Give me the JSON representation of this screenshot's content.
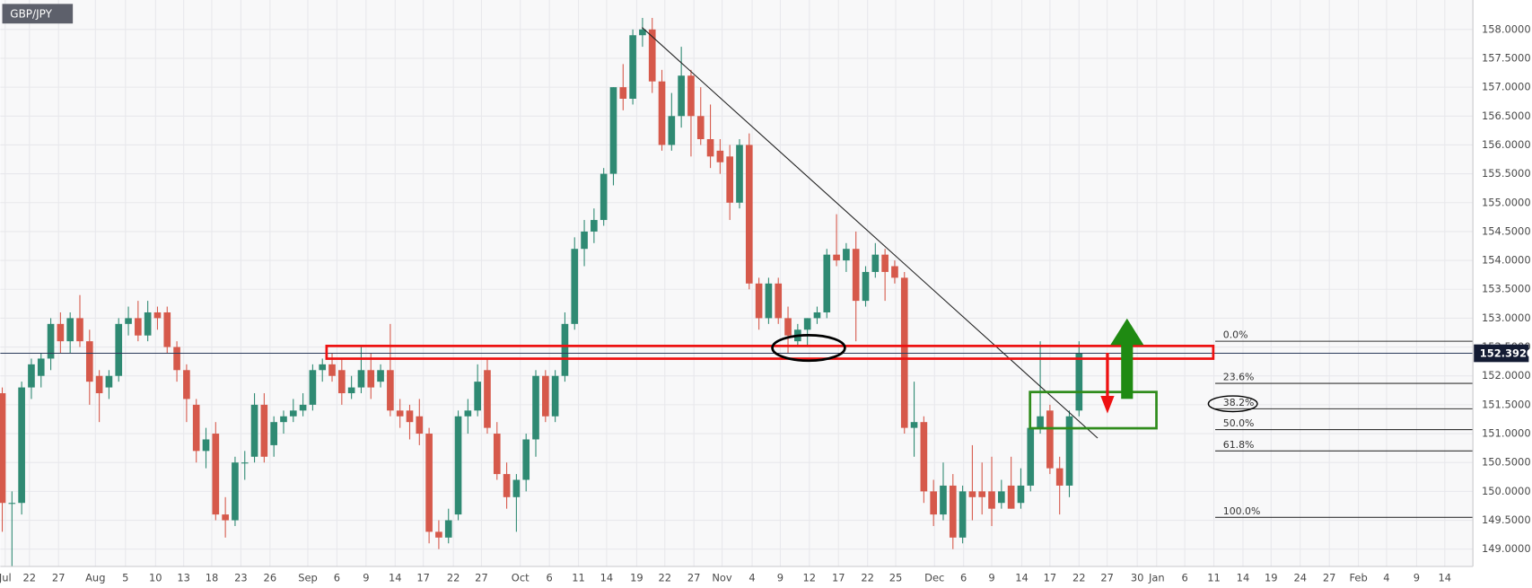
{
  "chart_data": {
    "type": "candlestick",
    "title": "GBP/JPY",
    "up_color": "#2f8a73",
    "down_color": "#d6594b",
    "xlim": [
      -0.2,
      151.6
    ],
    "ylim": [
      148.7,
      158.51
    ],
    "grid": true,
    "xticks": [
      {
        "value": 0.3,
        "label": "Jul"
      },
      {
        "value": 2.8,
        "label": "22"
      },
      {
        "value": 5.8,
        "label": "27"
      },
      {
        "value": 9.6,
        "label": "Aug"
      },
      {
        "value": 12.7,
        "label": "5"
      },
      {
        "value": 15.8,
        "label": "10"
      },
      {
        "value": 18.7,
        "label": "13"
      },
      {
        "value": 21.6,
        "label": "18"
      },
      {
        "value": 24.6,
        "label": "23"
      },
      {
        "value": 27.6,
        "label": "26"
      },
      {
        "value": 31.5,
        "label": "Sep"
      },
      {
        "value": 34.5,
        "label": "6"
      },
      {
        "value": 37.5,
        "label": "9"
      },
      {
        "value": 40.5,
        "label": "14"
      },
      {
        "value": 43.4,
        "label": "17"
      },
      {
        "value": 46.5,
        "label": "22"
      },
      {
        "value": 49.4,
        "label": "27"
      },
      {
        "value": 53.4,
        "label": "Oct"
      },
      {
        "value": 56.4,
        "label": "6"
      },
      {
        "value": 59.4,
        "label": "11"
      },
      {
        "value": 62.3,
        "label": "14"
      },
      {
        "value": 65.4,
        "label": "19"
      },
      {
        "value": 68.3,
        "label": "22"
      },
      {
        "value": 71.3,
        "label": "27"
      },
      {
        "value": 74.2,
        "label": "Nov"
      },
      {
        "value": 77.3,
        "label": "4"
      },
      {
        "value": 80.2,
        "label": "9"
      },
      {
        "value": 83.2,
        "label": "12"
      },
      {
        "value": 86.2,
        "label": "17"
      },
      {
        "value": 89.2,
        "label": "22"
      },
      {
        "value": 92.1,
        "label": "25"
      },
      {
        "value": 96.1,
        "label": "Dec"
      },
      {
        "value": 99.1,
        "label": "6"
      },
      {
        "value": 102,
        "label": "9"
      },
      {
        "value": 105.1,
        "label": "14"
      },
      {
        "value": 108,
        "label": "17"
      },
      {
        "value": 111,
        "label": "22"
      },
      {
        "value": 113.9,
        "label": "27"
      },
      {
        "value": 117,
        "label": "30"
      },
      {
        "value": 119,
        "label": "Jan"
      },
      {
        "value": 121.9,
        "label": "6"
      },
      {
        "value": 124.9,
        "label": "11"
      },
      {
        "value": 127.9,
        "label": "14"
      },
      {
        "value": 130.8,
        "label": "19"
      },
      {
        "value": 133.8,
        "label": "24"
      },
      {
        "value": 136.8,
        "label": "27"
      },
      {
        "value": 139.8,
        "label": "Feb"
      },
      {
        "value": 142.7,
        "label": "4"
      },
      {
        "value": 145.8,
        "label": "9"
      },
      {
        "value": 148.7,
        "label": "14"
      }
    ],
    "yticks": [
      {
        "value": 149,
        "label": "149.0000"
      },
      {
        "value": 149.5,
        "label": "149.5000"
      },
      {
        "value": 150,
        "label": "150.0000"
      },
      {
        "value": 150.5,
        "label": "150.5000"
      },
      {
        "value": 151,
        "label": "151.0000"
      },
      {
        "value": 151.5,
        "label": "151.5000"
      },
      {
        "value": 152,
        "label": "152.0000"
      },
      {
        "value": 152.5,
        "label": "152.5000"
      },
      {
        "value": 153,
        "label": "153.0000"
      },
      {
        "value": 153.5,
        "label": "153.5000"
      },
      {
        "value": 154,
        "label": "154.0000"
      },
      {
        "value": 154.5,
        "label": "154.5000"
      },
      {
        "value": 155,
        "label": "155.0000"
      },
      {
        "value": 155.5,
        "label": "155.5000"
      },
      {
        "value": 156,
        "label": "156.0000"
      },
      {
        "value": 156.5,
        "label": "156.5000"
      },
      {
        "value": 157,
        "label": "157.0000"
      },
      {
        "value": 157.5,
        "label": "157.5000"
      },
      {
        "value": 158,
        "label": "158.0000"
      }
    ],
    "current_price": {
      "value": 152.392,
      "label": "152.3920"
    },
    "fib_levels": [
      {
        "value": 152.6,
        "label": "0.0%"
      },
      {
        "value": 151.87,
        "label": "23.6%"
      },
      {
        "value": 151.43,
        "label": "38.2%"
      },
      {
        "value": 151.07,
        "label": "50.0%"
      },
      {
        "value": 150.7,
        "label": "61.8%"
      },
      {
        "value": 149.55,
        "label": "100.0%"
      }
    ],
    "candles": [
      [
        151.7,
        151.8,
        149.3,
        149.8
      ],
      [
        149.8,
        150.0,
        148.7,
        149.8
      ],
      [
        149.8,
        151.9,
        149.6,
        151.8
      ],
      [
        151.8,
        152.3,
        151.6,
        152.2
      ],
      [
        152.0,
        152.4,
        151.8,
        152.3
      ],
      [
        152.3,
        153.0,
        152.1,
        152.9
      ],
      [
        152.9,
        153.1,
        152.4,
        152.6
      ],
      [
        152.6,
        153.1,
        152.4,
        153.0
      ],
      [
        153.0,
        153.4,
        152.5,
        152.6
      ],
      [
        152.6,
        152.8,
        151.5,
        151.9
      ],
      [
        152.0,
        152.1,
        151.2,
        151.7
      ],
      [
        151.8,
        152.1,
        151.6,
        152.0
      ],
      [
        152.0,
        153.0,
        151.9,
        152.9
      ],
      [
        152.9,
        153.2,
        152.7,
        153.0
      ],
      [
        153.0,
        153.3,
        152.6,
        152.7
      ],
      [
        152.7,
        153.3,
        152.6,
        153.1
      ],
      [
        153.1,
        153.2,
        152.8,
        153.0
      ],
      [
        153.1,
        153.2,
        152.4,
        152.5
      ],
      [
        152.5,
        152.6,
        151.9,
        152.1
      ],
      [
        152.1,
        152.2,
        151.2,
        151.6
      ],
      [
        151.5,
        151.6,
        150.5,
        150.7
      ],
      [
        150.7,
        151.1,
        150.4,
        150.9
      ],
      [
        151.0,
        151.2,
        149.5,
        149.6
      ],
      [
        149.6,
        149.9,
        149.2,
        149.5
      ],
      [
        149.5,
        150.6,
        149.4,
        150.5
      ],
      [
        150.5,
        150.7,
        150.2,
        150.5
      ],
      [
        150.6,
        151.7,
        150.5,
        151.5
      ],
      [
        151.5,
        151.7,
        150.5,
        150.6
      ],
      [
        150.8,
        151.3,
        150.6,
        151.2
      ],
      [
        151.2,
        151.4,
        151.0,
        151.3
      ],
      [
        151.3,
        151.6,
        151.2,
        151.4
      ],
      [
        151.4,
        151.7,
        151.3,
        151.5
      ],
      [
        151.5,
        152.2,
        151.4,
        152.1
      ],
      [
        152.1,
        152.3,
        151.9,
        152.2
      ],
      [
        152.2,
        152.4,
        151.9,
        152.0
      ],
      [
        152.1,
        152.3,
        151.5,
        151.7
      ],
      [
        151.7,
        152.0,
        151.6,
        151.8
      ],
      [
        151.8,
        152.5,
        151.7,
        152.1
      ],
      [
        152.1,
        152.4,
        151.6,
        151.8
      ],
      [
        151.9,
        152.2,
        151.8,
        152.1
      ],
      [
        152.1,
        152.9,
        151.3,
        151.4
      ],
      [
        151.4,
        151.6,
        151.1,
        151.3
      ],
      [
        151.4,
        151.5,
        150.9,
        151.2
      ],
      [
        151.3,
        151.6,
        150.8,
        151.0
      ],
      [
        151.0,
        151.1,
        149.1,
        149.3
      ],
      [
        149.3,
        149.5,
        149.0,
        149.2
      ],
      [
        149.2,
        149.7,
        149.1,
        149.5
      ],
      [
        149.6,
        151.4,
        149.5,
        151.3
      ],
      [
        151.3,
        151.6,
        151.0,
        151.4
      ],
      [
        151.4,
        152.2,
        151.3,
        151.9
      ],
      [
        152.1,
        152.3,
        151.0,
        151.1
      ],
      [
        151.0,
        151.2,
        150.2,
        150.3
      ],
      [
        150.3,
        150.5,
        149.7,
        149.9
      ],
      [
        149.9,
        150.3,
        149.3,
        150.2
      ],
      [
        150.2,
        151.0,
        150.0,
        150.9
      ],
      [
        150.9,
        152.1,
        150.6,
        152.0
      ],
      [
        152.0,
        152.1,
        151.2,
        151.3
      ],
      [
        151.3,
        152.1,
        151.2,
        152.0
      ],
      [
        152.0,
        153.1,
        151.9,
        152.9
      ],
      [
        152.9,
        154.4,
        152.8,
        154.2
      ],
      [
        154.2,
        154.7,
        153.9,
        154.5
      ],
      [
        154.5,
        154.9,
        154.3,
        154.7
      ],
      [
        154.7,
        155.6,
        154.6,
        155.5
      ],
      [
        155.5,
        157.0,
        155.3,
        157.0
      ],
      [
        157.0,
        157.4,
        156.6,
        156.8
      ],
      [
        156.8,
        158.0,
        156.7,
        157.9
      ],
      [
        157.9,
        158.2,
        157.7,
        158.0
      ],
      [
        158.0,
        158.2,
        156.9,
        157.1
      ],
      [
        157.1,
        157.3,
        155.9,
        156.0
      ],
      [
        156.0,
        156.9,
        155.9,
        156.5
      ],
      [
        156.5,
        157.7,
        156.3,
        157.2
      ],
      [
        157.2,
        157.3,
        155.8,
        156.5
      ],
      [
        156.5,
        157.0,
        156.0,
        156.1
      ],
      [
        156.1,
        156.7,
        155.6,
        155.8
      ],
      [
        155.9,
        156.1,
        155.5,
        155.7
      ],
      [
        155.8,
        156.0,
        154.7,
        155.0
      ],
      [
        155.0,
        156.1,
        154.9,
        156.0
      ],
      [
        156.0,
        156.2,
        153.5,
        153.6
      ],
      [
        153.6,
        153.7,
        152.8,
        153.0
      ],
      [
        153.0,
        153.7,
        152.9,
        153.6
      ],
      [
        153.6,
        153.7,
        152.9,
        153.0
      ],
      [
        153.0,
        153.2,
        152.4,
        152.7
      ],
      [
        152.6,
        152.9,
        152.5,
        152.8
      ],
      [
        152.8,
        153.0,
        152.5,
        153.0
      ],
      [
        153.0,
        153.2,
        152.9,
        153.1
      ],
      [
        153.1,
        154.2,
        153.0,
        154.1
      ],
      [
        154.1,
        154.8,
        153.9,
        154.0
      ],
      [
        154.0,
        154.3,
        153.8,
        154.2
      ],
      [
        154.2,
        154.5,
        152.6,
        153.3
      ],
      [
        153.3,
        153.9,
        153.2,
        153.8
      ],
      [
        153.8,
        154.3,
        153.7,
        154.1
      ],
      [
        154.1,
        154.2,
        153.3,
        153.8
      ],
      [
        153.9,
        154.0,
        153.6,
        153.7
      ],
      [
        153.7,
        153.8,
        151.0,
        151.1
      ],
      [
        151.1,
        151.9,
        150.6,
        151.2
      ],
      [
        151.2,
        151.3,
        149.8,
        150.0
      ],
      [
        150.0,
        150.2,
        149.4,
        149.6
      ],
      [
        149.6,
        150.5,
        149.5,
        150.1
      ],
      [
        150.1,
        150.3,
        149.0,
        149.2
      ],
      [
        149.2,
        150.1,
        149.1,
        150.0
      ],
      [
        150.0,
        150.8,
        149.5,
        149.9
      ],
      [
        150.0,
        150.5,
        149.6,
        149.9
      ],
      [
        150.0,
        150.6,
        149.4,
        149.7
      ],
      [
        149.8,
        150.2,
        149.7,
        150.0
      ],
      [
        150.1,
        150.6,
        149.7,
        149.7
      ],
      [
        149.8,
        150.4,
        149.7,
        150.1
      ],
      [
        150.1,
        151.2,
        150.0,
        151.1
      ],
      [
        151.1,
        152.6,
        151.0,
        151.3
      ],
      [
        151.4,
        151.5,
        150.3,
        150.4
      ],
      [
        150.4,
        150.6,
        149.6,
        150.1
      ],
      [
        150.1,
        151.4,
        149.9,
        151.3
      ],
      [
        151.4,
        152.6,
        151.3,
        152.4
      ]
    ]
  }
}
